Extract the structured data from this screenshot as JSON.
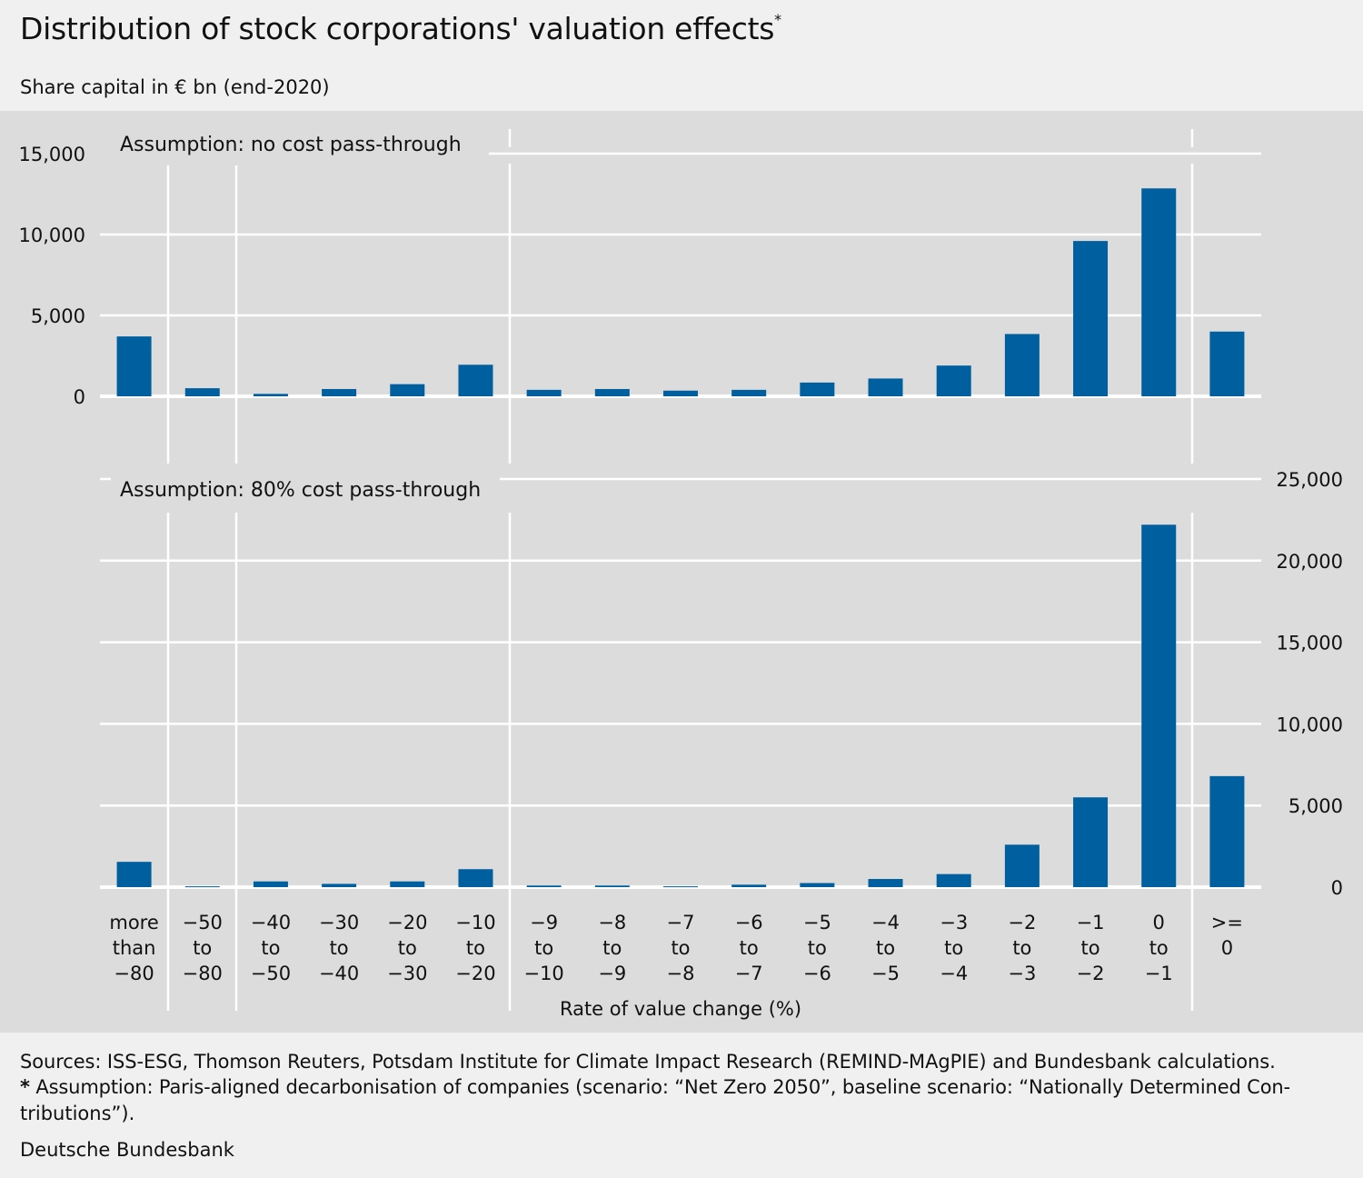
{
  "title": "Distribution of stock corporations' valuation effects",
  "title_marker": "*",
  "subtitle": "Share capital in € bn (end-2020)",
  "footer": {
    "sources": "Sources: ISS-ESG, Thomson Reuters, Potsdam Institute for Climate Impact Research (REMIND-MAgPIE) and Bundesbank calculations.",
    "note_marker": "*",
    "note_line1": " Assumption: Paris-aligned decarbonisation of companies (scenario: “Net Zero 2050”, baseline scenario: “Nationally Determined Con-",
    "note_line2": "tributions”).",
    "publisher": "Deutsche Bundesbank"
  },
  "colors": {
    "bar": "#005f9f",
    "background": "#dcdcdc",
    "grid": "#ffffff",
    "page": "#f0f0f0"
  },
  "chart_data": {
    "type": "bar",
    "xlabel": "Rate of value change (%)",
    "categories": [
      [
        "more",
        "than",
        "−80"
      ],
      [
        "−50",
        "to",
        "−80"
      ],
      [
        "−40",
        "to",
        "−50"
      ],
      [
        "−30",
        "to",
        "−40"
      ],
      [
        "−20",
        "to",
        "−30"
      ],
      [
        "−10",
        "to",
        "−20"
      ],
      [
        "−9",
        "to",
        "−10"
      ],
      [
        "−8",
        "to",
        "−9"
      ],
      [
        "−7",
        "to",
        "−8"
      ],
      [
        "−6",
        "to",
        "−7"
      ],
      [
        "−5",
        "to",
        "−6"
      ],
      [
        "−4",
        "to",
        "−5"
      ],
      [
        "−3",
        "to",
        "−4"
      ],
      [
        "−2",
        "to",
        "−3"
      ],
      [
        "−1",
        "to",
        "−2"
      ],
      [
        "0",
        "to",
        "−1"
      ],
      [
        ">=",
        "0"
      ]
    ],
    "panels": [
      {
        "label": "Assumption: no cost pass-through",
        "y_axis_side": "left",
        "ylim": [
          0,
          15000
        ],
        "yticks": [
          0,
          5000,
          10000,
          15000
        ],
        "ytick_labels": [
          "0",
          "5,000",
          "10,000",
          "15,000"
        ],
        "values": [
          3700,
          500,
          150,
          450,
          750,
          1950,
          400,
          450,
          350,
          400,
          850,
          1100,
          1900,
          3850,
          9600,
          12850,
          4000
        ]
      },
      {
        "label": "Assumption: 80% cost pass-through",
        "y_axis_side": "right",
        "ylim": [
          0,
          25000
        ],
        "yticks": [
          0,
          5000,
          10000,
          15000,
          20000,
          25000
        ],
        "ytick_labels": [
          "0",
          "5,000",
          "10,000",
          "15,000",
          "20,000",
          "25,000"
        ],
        "values": [
          1550,
          50,
          350,
          200,
          350,
          1100,
          100,
          100,
          50,
          150,
          250,
          500,
          800,
          2600,
          5500,
          22200,
          6800
        ]
      }
    ]
  }
}
